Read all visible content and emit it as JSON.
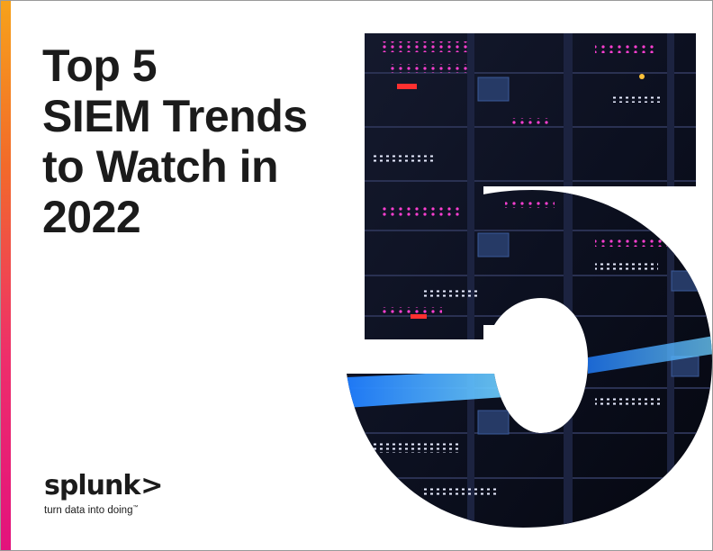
{
  "cover": {
    "title_lines": [
      "Top 5",
      "SIEM Trends",
      "to Watch in",
      "2022"
    ],
    "hero_numeral": "5"
  },
  "brand": {
    "name": "splunk",
    "chevron": ">",
    "tagline": "turn data into doing",
    "trademark": "™"
  },
  "colors": {
    "accent_top": "#f7a21b",
    "accent_mid": "#ee2e6b",
    "accent_bottom": "#e3127d",
    "title_text": "#1b1b1b",
    "image_dark": "#0c1020",
    "led_magenta": "#ff3fd2",
    "led_blue": "#2a9bff"
  }
}
